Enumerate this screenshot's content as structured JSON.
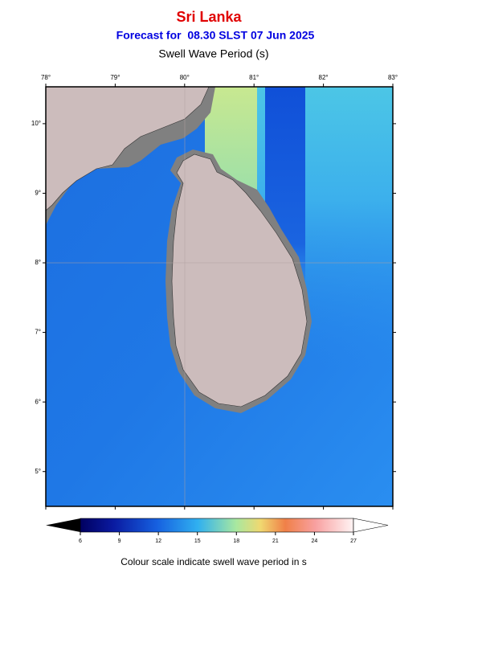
{
  "header": {
    "title": "Sri Lanka",
    "subtitle": "Forecast for  08.30 SLST 07 Jun 2025",
    "parameter": "Swell Wave Period (s)"
  },
  "map": {
    "lon_range": [
      78,
      83
    ],
    "lat_range": [
      4.5,
      10.53
    ],
    "lon_ticks": [
      {
        "value": 78,
        "label": "78°"
      },
      {
        "value": 79,
        "label": "79°"
      },
      {
        "value": 80,
        "label": "80°"
      },
      {
        "value": 81,
        "label": "81°"
      },
      {
        "value": 82,
        "label": "82°"
      },
      {
        "value": 83,
        "label": "83°"
      }
    ],
    "lat_ticks": [
      {
        "value": 10,
        "label": "10°"
      },
      {
        "value": 9,
        "label": "9°"
      },
      {
        "value": 8,
        "label": "8°"
      },
      {
        "value": 7,
        "label": "7°"
      },
      {
        "value": 6,
        "label": "6°"
      },
      {
        "value": 5,
        "label": "5°"
      }
    ]
  },
  "colorbar": {
    "range": [
      6,
      27
    ],
    "ticks": [
      6,
      9,
      12,
      15,
      18,
      21,
      24,
      27
    ],
    "caption": "Colour scale indicate swell wave period in s"
  }
}
